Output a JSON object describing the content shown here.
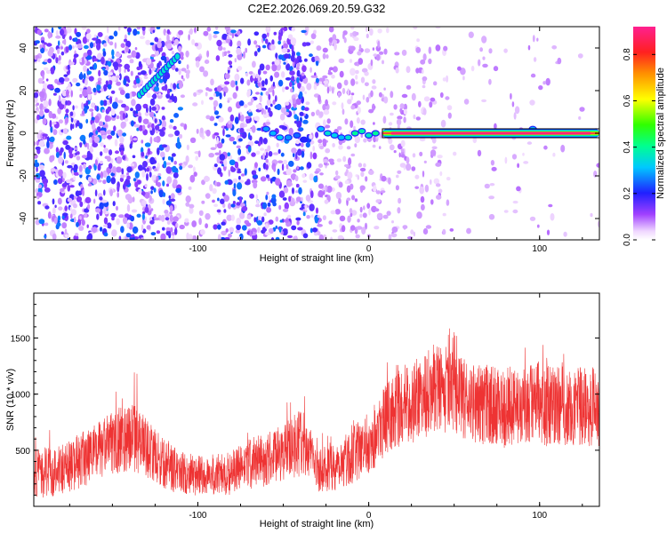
{
  "title": "C2E2.2026.069.20.59.G32",
  "chart_data": [
    {
      "type": "heatmap",
      "xlabel": "Height of straight line (km)",
      "ylabel": "Frequency (Hz)",
      "xlim": [
        -196,
        135
      ],
      "ylim": [
        -50,
        50
      ],
      "x_ticks": [
        -100,
        0,
        100
      ],
      "x_tick_labels": [
        "-100",
        "0",
        "100"
      ],
      "y_ticks": [
        -40,
        -20,
        0,
        20,
        40
      ],
      "y_tick_labels": [
        "-40",
        "-20",
        "0",
        "20",
        "40"
      ],
      "colorbar": {
        "label": "Normalized spectral amplitude",
        "range": [
          0,
          0.92
        ],
        "ticks": [
          0.0,
          0.2,
          0.4,
          0.6,
          0.8
        ],
        "tick_labels": [
          "0.0",
          "0.2",
          "0.4",
          "0.6",
          "0.8"
        ]
      },
      "main_band": {
        "x_start": 8,
        "x_end": 135,
        "frequency": 0,
        "amplitude": 0.9
      },
      "diagonal_feature": {
        "x": [
          -134,
          -112
        ],
        "y": [
          18,
          36
        ],
        "amplitude": 0.35
      },
      "broken_feature": [
        {
          "x": -60,
          "y": 2,
          "a": 0.28
        },
        {
          "x": -56,
          "y": 0,
          "a": 0.3
        },
        {
          "x": -52,
          "y": -2,
          "a": 0.32
        },
        {
          "x": -47,
          "y": -2,
          "a": 0.28
        },
        {
          "x": -42,
          "y": -1,
          "a": 0.25
        },
        {
          "x": -38,
          "y": -3,
          "a": 0.2
        },
        {
          "x": -28,
          "y": 2,
          "a": 0.3
        },
        {
          "x": -24,
          "y": 0,
          "a": 0.35
        },
        {
          "x": -20,
          "y": -1,
          "a": 0.33
        },
        {
          "x": -16,
          "y": -2,
          "a": 0.3
        },
        {
          "x": -12,
          "y": -2,
          "a": 0.35
        },
        {
          "x": -8,
          "y": 0,
          "a": 0.4
        },
        {
          "x": -4,
          "y": 1,
          "a": 0.38
        },
        {
          "x": 0,
          "y": -1,
          "a": 0.36
        },
        {
          "x": 4,
          "y": 0,
          "a": 0.4
        },
        {
          "x": 96,
          "y": 2,
          "a": 0.3
        }
      ]
    },
    {
      "type": "line",
      "xlabel": "Height of straight line (km)",
      "ylabel": "SNR (10 * v/v)",
      "xlim": [
        -196,
        135
      ],
      "ylim": [
        0,
        1900
      ],
      "x_ticks": [
        -100,
        0,
        100
      ],
      "x_tick_labels": [
        "-100",
        "0",
        "100"
      ],
      "y_ticks": [
        500,
        1000,
        1500
      ],
      "y_tick_labels": [
        "500",
        "1000",
        "1500"
      ],
      "color": "#ee3333",
      "envelope": {
        "x": [
          -196,
          -175,
          -160,
          -150,
          -140,
          -130,
          -120,
          -110,
          -100,
          -90,
          -80,
          -70,
          -60,
          -50,
          -40,
          -35,
          -30,
          -20,
          -10,
          0,
          10,
          20,
          30,
          40,
          50,
          60,
          70,
          80,
          90,
          100,
          110,
          120,
          135
        ],
        "mean": [
          280,
          350,
          480,
          560,
          640,
          520,
          380,
          300,
          270,
          280,
          300,
          380,
          420,
          480,
          560,
          480,
          330,
          360,
          450,
          560,
          780,
          900,
          960,
          1080,
          1000,
          920,
          900,
          880,
          900,
          920,
          900,
          880,
          880
        ],
        "spread": [
          220,
          240,
          260,
          280,
          320,
          260,
          220,
          200,
          180,
          190,
          200,
          230,
          240,
          260,
          300,
          250,
          200,
          230,
          250,
          280,
          320,
          350,
          380,
          400,
          380,
          360,
          360,
          360,
          370,
          380,
          370,
          360,
          360
        ]
      }
    }
  ]
}
